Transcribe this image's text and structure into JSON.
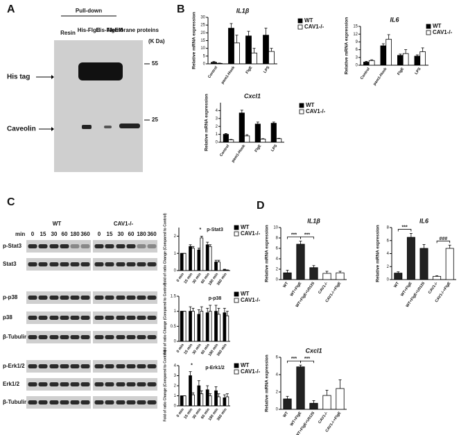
{
  "figure": {
    "panel_a": {
      "label": "A",
      "header": "Pull-down",
      "lanes": [
        "Resin",
        "His-FlgE",
        "His-FlgEM",
        "Membrane proteins"
      ],
      "unit": "(K Da)",
      "markers": [
        "55",
        "25"
      ],
      "bands": [
        "His tag",
        "Caveolin"
      ]
    },
    "panel_b": {
      "label": "B"
    },
    "panel_c": {
      "label": "C",
      "groups": [
        "WT",
        "CAV1-/-"
      ],
      "time_label": "min",
      "times": [
        "0",
        "15",
        "30",
        "60",
        "180",
        "360"
      ],
      "rows": [
        "p-Stat3",
        "Stat3",
        "p-p38",
        "p38",
        "β-Tubulin",
        "p-Erk1/2",
        "Erk1/2",
        "β-Tubulin"
      ]
    },
    "panel_d": {
      "label": "D"
    }
  },
  "chart_data": [
    {
      "type": "bar",
      "title": "IL1β",
      "ylabel": "Relative mRNA expression",
      "categories": [
        "Control",
        "pam1-Hook",
        "FlgE",
        "LPS"
      ],
      "series": [
        {
          "name": "WT",
          "color": "#000000",
          "values": [
            1,
            23,
            18,
            18.5
          ],
          "errors": [
            0.5,
            3,
            3,
            4.5
          ]
        },
        {
          "name": "CAV1-/-",
          "color": "#ffffff",
          "values": [
            0.3,
            13.5,
            7,
            8
          ],
          "errors": [
            0.2,
            5,
            3,
            2
          ]
        }
      ],
      "ylim": [
        0,
        30
      ],
      "yticks": [
        0,
        5,
        10,
        15,
        20,
        25,
        30
      ],
      "legend": "upper right"
    },
    {
      "type": "bar",
      "title": "IL6",
      "ylabel": "Relative mRNA expression",
      "categories": [
        "Control",
        "pam1-Hook",
        "FlgE",
        "LPS"
      ],
      "series": [
        {
          "name": "WT",
          "color": "#000000",
          "values": [
            1.2,
            7.5,
            3.8,
            3.5
          ],
          "errors": [
            0.3,
            0.8,
            0.5,
            0.5
          ]
        },
        {
          "name": "CAV1-/-",
          "color": "#ffffff",
          "values": [
            1.8,
            10,
            4.5,
            5.2
          ],
          "errors": [
            0.3,
            1.8,
            1.5,
            1.5
          ]
        }
      ],
      "ylim": [
        0,
        15
      ],
      "yticks": [
        0,
        3,
        6,
        9,
        12,
        15
      ],
      "legend": "upper right"
    },
    {
      "type": "bar",
      "title": "Cxcl1",
      "ylabel": "Relative mRNA expression",
      "categories": [
        "Control",
        "pam1-Hook",
        "FlgE",
        "LPS"
      ],
      "series": [
        {
          "name": "WT",
          "color": "#000000",
          "values": [
            1,
            3.7,
            2.3,
            2.4
          ],
          "errors": [
            0.1,
            0.35,
            0.25,
            0.15
          ]
        },
        {
          "name": "CAV1-/-",
          "color": "#ffffff",
          "values": [
            0.3,
            0.8,
            0.4,
            0.45
          ],
          "errors": [
            0.05,
            0.15,
            0.05,
            0.05
          ]
        }
      ],
      "ylim": [
        0,
        5
      ],
      "yticks": [
        0,
        1,
        2,
        3,
        4
      ],
      "legend": "upper right"
    },
    {
      "type": "bar",
      "title": "p-Stat3",
      "ylabel": "Fold of ratio Change (Compared to Control)",
      "categories": [
        "0 min",
        "15 min",
        "30 min",
        "60 min",
        "180 min",
        "360 min"
      ],
      "series": [
        {
          "name": "WT",
          "color": "#000000",
          "values": [
            1,
            1.4,
            1.2,
            1.5,
            0.5,
            0.05
          ],
          "errors": [
            0,
            0.1,
            0.1,
            0.15,
            0.1,
            0.03
          ]
        },
        {
          "name": "CAV1-/-",
          "color": "#ffffff",
          "values": [
            1,
            1.3,
            1.9,
            1.4,
            0.5,
            0.02
          ],
          "errors": [
            0,
            0.1,
            0.1,
            0.1,
            0.1,
            0.02
          ]
        }
      ],
      "ylim": [
        0,
        2.5
      ],
      "yticks": [
        0,
        1,
        2
      ],
      "legend": "upper right",
      "annotations": [
        {
          "text": "*",
          "bars": [
            2
          ]
        }
      ]
    },
    {
      "type": "bar",
      "title": "p-p38",
      "ylabel": "Fold of ratio Change (Compared to Control)",
      "categories": [
        "0 min",
        "15 min",
        "30 min",
        "60 min",
        "180 min",
        "360 min"
      ],
      "series": [
        {
          "name": "WT",
          "color": "#000000",
          "values": [
            1,
            1,
            0.9,
            0.95,
            1,
            0.95
          ],
          "errors": [
            0,
            0.15,
            0.15,
            0.15,
            0.2,
            0.15
          ]
        },
        {
          "name": "CAV1-/-",
          "color": "#ffffff",
          "values": [
            1,
            1,
            1,
            1,
            0.9,
            0.85
          ],
          "errors": [
            0,
            0.1,
            0.15,
            0.2,
            0.2,
            0.15
          ]
        }
      ],
      "ylim": [
        0,
        1.5
      ],
      "yticks": [
        0,
        0.5,
        1,
        1.5
      ],
      "legend": "upper right"
    },
    {
      "type": "bar",
      "title": "p-Erk1/2",
      "ylabel": "Fold of ratio Change (Compared to Control)",
      "categories": [
        "0 min",
        "15 min",
        "30 min",
        "60 min",
        "180 min",
        "360 min"
      ],
      "series": [
        {
          "name": "WT",
          "color": "#000000",
          "values": [
            1,
            3,
            2,
            1.6,
            1.5,
            0.8
          ],
          "errors": [
            0,
            0.4,
            0.5,
            0.4,
            0.4,
            0.3
          ]
        },
        {
          "name": "CAV1-/-",
          "color": "#ffffff",
          "values": [
            1,
            1.1,
            1.2,
            1,
            0.9,
            0.9
          ],
          "errors": [
            0,
            0.2,
            0.3,
            0.2,
            0.3,
            0.3
          ]
        }
      ],
      "ylim": [
        0,
        4
      ],
      "yticks": [
        0,
        1,
        2,
        3,
        4
      ],
      "legend": "upper right",
      "annotations": [
        {
          "text": "*",
          "bars": [
            1
          ]
        }
      ]
    },
    {
      "type": "bar",
      "title": "IL1β",
      "ylabel": "Relative mRNA expression",
      "categories": [
        "WT",
        "WT+FlgE",
        "WT+FlgE+U0126",
        "CAV1-/-",
        "CAV1-/-+FlgE"
      ],
      "values": [
        1.3,
        6.8,
        2.3,
        1.2,
        1.3
      ],
      "errors": [
        0.5,
        0.6,
        0.4,
        0.4,
        0.3
      ],
      "colors": [
        "#222222",
        "#222222",
        "#222222",
        "#ffffff",
        "#ffffff"
      ],
      "ylim": [
        0,
        10
      ],
      "yticks": [
        0,
        2,
        4,
        6,
        8,
        10
      ],
      "annotations": [
        {
          "text": "***",
          "bars": [
            0,
            1
          ]
        },
        {
          "text": "***",
          "bars": [
            1,
            2
          ]
        }
      ]
    },
    {
      "type": "bar",
      "title": "IL6",
      "ylabel": "Relative mRNA expression",
      "categories": [
        "WT",
        "WT+FlgE",
        "WT+FlgE+U0126",
        "CAV1-/-",
        "CAV1-/-+FlgE"
      ],
      "values": [
        1,
        6.5,
        4.8,
        0.5,
        4.8
      ],
      "errors": [
        0.2,
        0.6,
        0.6,
        0.1,
        0.5
      ],
      "colors": [
        "#222222",
        "#222222",
        "#222222",
        "#ffffff",
        "#ffffff"
      ],
      "ylim": [
        0,
        8
      ],
      "yticks": [
        0,
        2,
        4,
        6,
        8
      ],
      "annotations": [
        {
          "text": "***",
          "bars": [
            0,
            1
          ]
        },
        {
          "text": "###",
          "bars": [
            3,
            4
          ]
        }
      ]
    },
    {
      "type": "bar",
      "title": "Cxcl1",
      "ylabel": "Relative mRNA expression",
      "categories": [
        "WT",
        "WT+FlgE",
        "WT+FlgE+U0126",
        "CAV1-/-",
        "CAV1-/-+FlgE"
      ],
      "values": [
        1.2,
        4.9,
        0.7,
        1.6,
        2.4
      ],
      "errors": [
        0.3,
        0.2,
        0.3,
        0.6,
        1
      ],
      "colors": [
        "#222222",
        "#222222",
        "#222222",
        "#ffffff",
        "#ffffff"
      ],
      "ylim": [
        0,
        6
      ],
      "yticks": [
        0,
        2,
        4,
        6
      ],
      "annotations": [
        {
          "text": "***",
          "bars": [
            0,
            1
          ]
        },
        {
          "text": "***",
          "bars": [
            1,
            2
          ]
        }
      ]
    }
  ]
}
